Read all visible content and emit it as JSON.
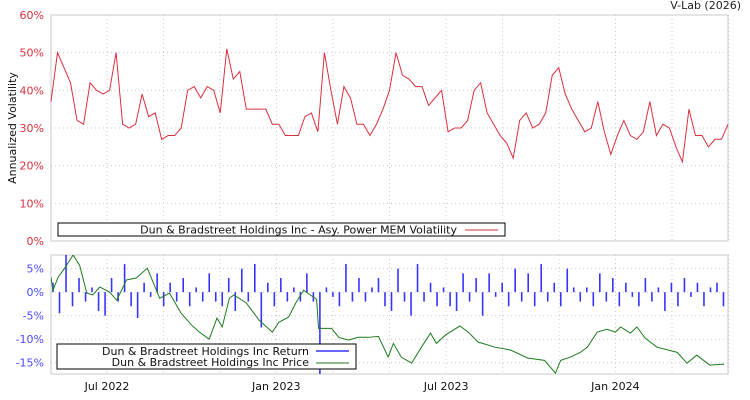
{
  "credit": "V-Lab (2026)",
  "chart_data": [
    {
      "type": "line",
      "ylabel": "Annualized Volatility",
      "ylim": [
        0,
        60
      ],
      "yticks": [
        "0%",
        "10%",
        "20%",
        "30%",
        "40%",
        "50%",
        "60%"
      ],
      "ytick_values": [
        0,
        10,
        20,
        30,
        40,
        50,
        60
      ],
      "x_unit": "weeks since start (approx. May 2022)",
      "xlim": [
        0,
        104
      ],
      "grid": true,
      "legend": "bottom-left",
      "series": [
        {
          "name": "Dun & Bradstreet Holdings Inc - Asy. Power MEM Volatility",
          "color": "#d9303d",
          "values": [
            37,
            50,
            46,
            42,
            32,
            31,
            42,
            40,
            39,
            40,
            50,
            31,
            30,
            31,
            39,
            33,
            34,
            27,
            28,
            28,
            30,
            40,
            41,
            38,
            41,
            40,
            34,
            51,
            43,
            45,
            35,
            35,
            35,
            35,
            31,
            31,
            28,
            28,
            28,
            33,
            34,
            29,
            50,
            40,
            31,
            41,
            38,
            31,
            31,
            28,
            31,
            35,
            40,
            50,
            44,
            43,
            41,
            41,
            36,
            38,
            40,
            29,
            30,
            30,
            32,
            40,
            42,
            34,
            31,
            28,
            26,
            22,
            32,
            34,
            30,
            31,
            34,
            44,
            46,
            39,
            35,
            32,
            29,
            30,
            37,
            29,
            23,
            28,
            32,
            28,
            27,
            29,
            37,
            28,
            31,
            30,
            25,
            21,
            35,
            28,
            28,
            25,
            27,
            27,
            31
          ]
        }
      ]
    },
    {
      "type": "line",
      "ylim": [
        -17.4,
        7.9
      ],
      "yticks": [
        "-15%",
        "-10%",
        "-5%",
        "0%",
        "5%"
      ],
      "ytick_values": [
        -15,
        -10,
        -5,
        0,
        5
      ],
      "xlim": [
        0,
        104
      ],
      "xticks": [
        "Jul 2022",
        "Jan 2023",
        "Jul 2023",
        "Jan 2024"
      ],
      "xtick_values": [
        8.6,
        34.6,
        60.7,
        86.7
      ],
      "grid": true,
      "legend": "bottom-left",
      "series": [
        {
          "name": "Dun & Bradstreet Holdings Inc Return",
          "color": "#3535ff",
          "type": "bar",
          "values": [
            2,
            -4.5,
            8,
            -3,
            3,
            -2,
            1,
            -4,
            -5,
            3,
            -2,
            6,
            -3,
            -5.5,
            2,
            -1,
            4,
            -3,
            2,
            -2,
            3,
            -3,
            1,
            -2,
            4,
            -2,
            -3,
            3,
            -4,
            5,
            -2,
            6,
            -7.5,
            2,
            -3,
            3,
            -2,
            1,
            -2,
            4,
            -2,
            -17.5,
            1,
            -1,
            -3,
            6,
            -2,
            3,
            -2,
            1,
            3,
            -3,
            -4,
            5,
            -2,
            -5,
            6,
            -2,
            2,
            -3,
            1,
            -3,
            -4,
            4,
            -2,
            3,
            -5,
            4,
            -1,
            2,
            -3,
            5,
            -2,
            4,
            -3,
            6,
            -2,
            2,
            -3,
            5,
            1,
            -2,
            1,
            -3,
            4,
            -2,
            3,
            -3,
            2,
            -1,
            -3,
            3,
            -2,
            1,
            -4,
            2,
            -3,
            3,
            -1,
            2,
            -3,
            1,
            2,
            -3
          ]
        },
        {
          "name": "Dun & Bradstreet Holdings Inc Price",
          "color": "#1f7a1f",
          "points": [
            [
              0,
              3.2
            ],
            [
              0.3,
              0.4
            ],
            [
              1.1,
              3.2
            ],
            [
              2.1,
              5.1
            ],
            [
              3.4,
              7.9
            ],
            [
              4.4,
              5.7
            ],
            [
              5.5,
              -0.2
            ],
            [
              6.4,
              -0.6
            ],
            [
              7.5,
              1.1
            ],
            [
              9.0,
              0
            ],
            [
              10.1,
              -1.7
            ],
            [
              11.6,
              2.6
            ],
            [
              13.1,
              3
            ],
            [
              14.8,
              5.1
            ],
            [
              16.7,
              -1.3
            ],
            [
              18.2,
              -0.2
            ],
            [
              20.0,
              -4.5
            ],
            [
              21.6,
              -7
            ],
            [
              22.8,
              -8.5
            ],
            [
              24.3,
              -10
            ],
            [
              25.5,
              -5.5
            ],
            [
              26.3,
              -7.4
            ],
            [
              27.4,
              -1.3
            ],
            [
              28.1,
              -0.6
            ],
            [
              30.0,
              -2.3
            ],
            [
              32.0,
              -6
            ],
            [
              34.0,
              -8.5
            ],
            [
              35.0,
              -6.4
            ],
            [
              36.5,
              -5.3
            ],
            [
              37.6,
              -2.3
            ],
            [
              38.8,
              0.4
            ],
            [
              40.8,
              -1.5
            ],
            [
              41.1,
              -7.7
            ],
            [
              43.1,
              -7.7
            ],
            [
              44.2,
              -9.6
            ],
            [
              45.7,
              -10.2
            ],
            [
              47.2,
              -9.6
            ],
            [
              48.8,
              -9.6
            ],
            [
              50.3,
              -9.4
            ],
            [
              51.8,
              -13.8
            ],
            [
              52.6,
              -10.9
            ],
            [
              53.8,
              -13.8
            ],
            [
              55.4,
              -15.1
            ],
            [
              56.9,
              -11.7
            ],
            [
              58.3,
              -8.7
            ],
            [
              59.2,
              -10.9
            ],
            [
              60.6,
              -9.1
            ],
            [
              62.8,
              -7.2
            ],
            [
              64.1,
              -8.5
            ],
            [
              65.6,
              -10.6
            ],
            [
              68.2,
              -11.7
            ],
            [
              70.6,
              -12.3
            ],
            [
              73.2,
              -14
            ],
            [
              75.8,
              -14.5
            ],
            [
              77.5,
              -17.2
            ],
            [
              78.3,
              -14.5
            ],
            [
              79.8,
              -13.8
            ],
            [
              81.3,
              -12.8
            ],
            [
              82.4,
              -11.7
            ],
            [
              83.9,
              -8.5
            ],
            [
              85.4,
              -7.9
            ],
            [
              86.7,
              -8.5
            ],
            [
              87.5,
              -7.4
            ],
            [
              89.0,
              -8.7
            ],
            [
              90.0,
              -7.4
            ],
            [
              91.3,
              -9.8
            ],
            [
              93.1,
              -11.7
            ],
            [
              96.2,
              -12.8
            ],
            [
              97.7,
              -15.1
            ],
            [
              99.2,
              -13.4
            ],
            [
              101.2,
              -15.5
            ],
            [
              103.4,
              -15.3
            ]
          ]
        }
      ]
    }
  ]
}
